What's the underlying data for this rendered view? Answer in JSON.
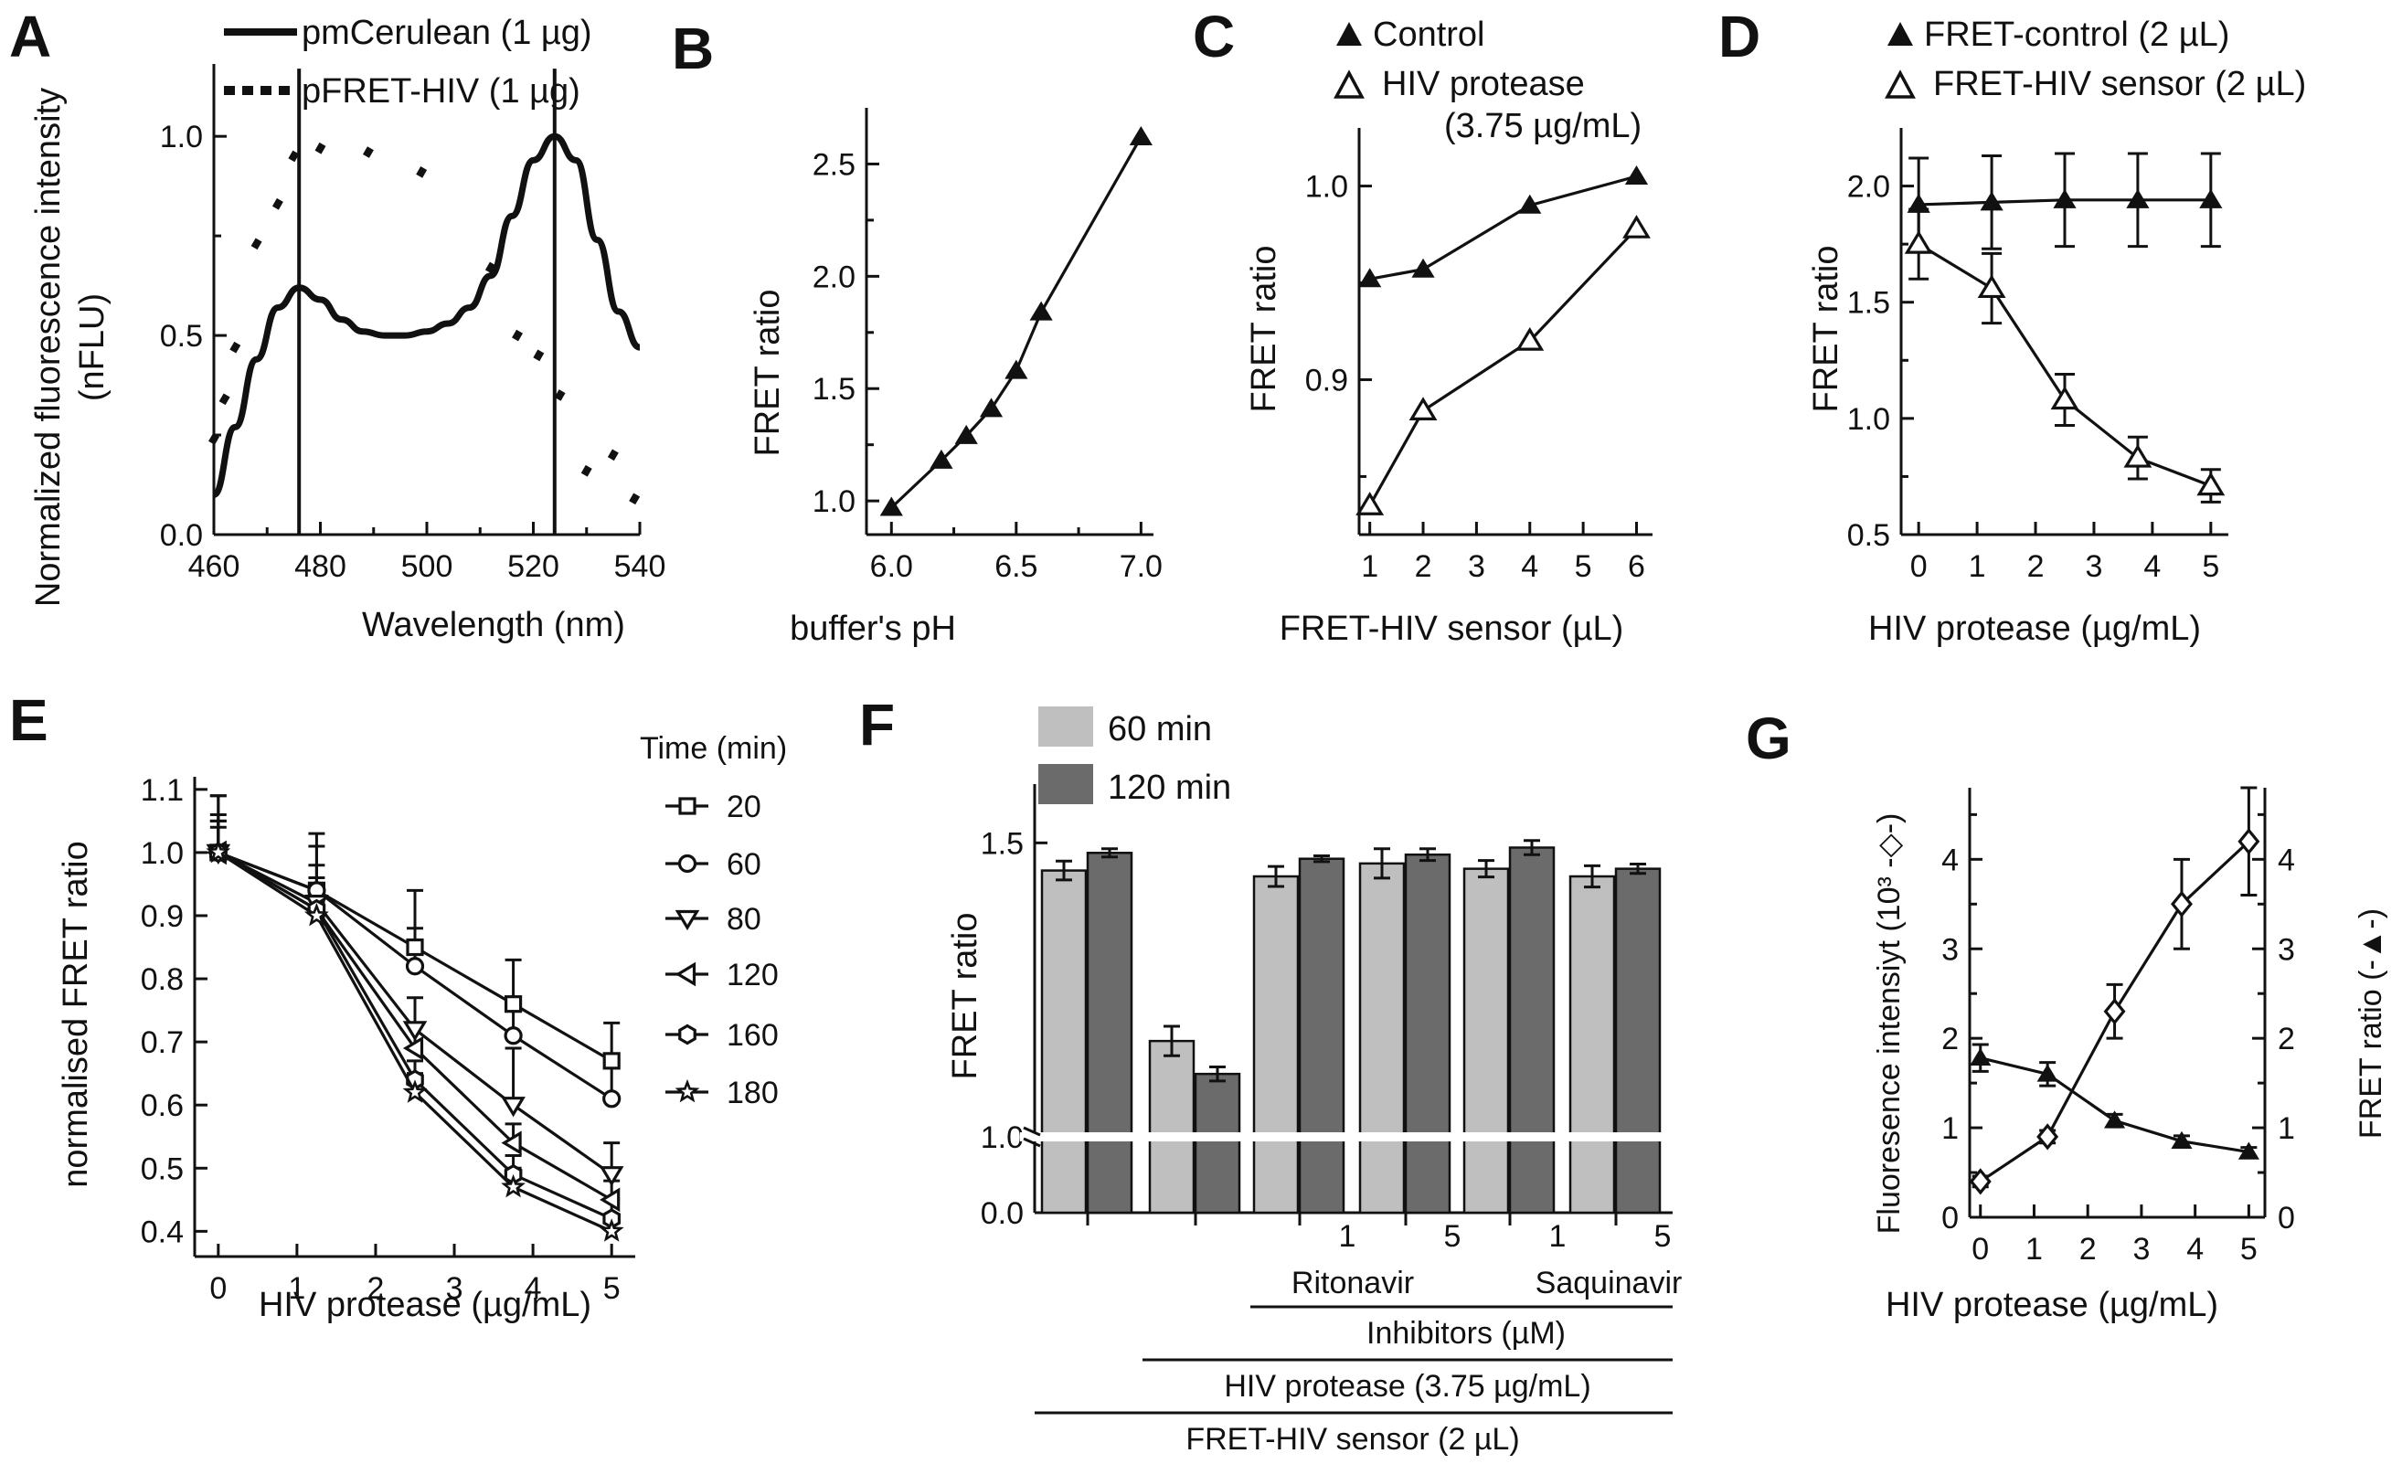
{
  "panels": {
    "A": {
      "label": "A",
      "xlabel": "Wavelength (nm)",
      "ylabel_lines": [
        "Normalized fluorescence intensity",
        "(nFLU)"
      ],
      "xticks": [
        "460",
        "480",
        "500",
        "520",
        "540"
      ],
      "yticks": [
        "0.0",
        "0.5",
        "1.0"
      ]
    },
    "B": {
      "label": "B",
      "xlabel": "buffer's pH",
      "ylabel": "FRET ratio",
      "xticks": [
        "6.0",
        "6.5",
        "7.0"
      ],
      "yticks": [
        "1.0",
        "1.5",
        "2.0",
        "2.5"
      ]
    },
    "C": {
      "label": "C",
      "xlabel": "FRET-HIV sensor (µL)",
      "ylabel": "FRET ratio",
      "xticks": [
        "1",
        "2",
        "3",
        "4",
        "5",
        "6"
      ],
      "yticks": [
        "0.9",
        "1.0"
      ]
    },
    "D": {
      "label": "D",
      "xlabel": "HIV protease (µg/mL)",
      "ylabel": "FRET ratio",
      "xticks": [
        "0",
        "1",
        "2",
        "3",
        "4",
        "5"
      ],
      "yticks": [
        "0.5",
        "1.0",
        "1.5",
        "2.0"
      ]
    },
    "E": {
      "label": "E",
      "xlabel": "HIV protease (µg/mL)",
      "ylabel": "normalised FRET ratio",
      "xticks": [
        "0",
        "1",
        "2",
        "3",
        "4",
        "5"
      ],
      "yticks": [
        "0.4",
        "0.5",
        "0.6",
        "0.7",
        "0.8",
        "0.9",
        "1.0",
        "1.1"
      ],
      "legend_title": "Time (min)"
    },
    "F": {
      "label": "F",
      "ylabel": "FRET ratio",
      "yticks": [
        "0.0",
        "1.0",
        "1.5"
      ],
      "dose_labels": [
        "1",
        "5",
        "1",
        "5"
      ],
      "drug_labels": [
        "Ritonavir",
        "Saquinavir"
      ],
      "bracket_labels": [
        "Inhibitors (µM)",
        "HIV protease (3.75 µg/mL)",
        "FRET-HIV sensor (2 µL)"
      ]
    },
    "G": {
      "label": "G",
      "xlabel": "HIV protease (µg/mL)",
      "ylabel_left": "Fluoresence intensiyt (10³ -◇-)",
      "ylabel_right": "FRET ratio  (-▲-)",
      "xticks": [
        "0",
        "1",
        "2",
        "3",
        "4",
        "5"
      ],
      "yticks": [
        "0",
        "1",
        "2",
        "3",
        "4"
      ],
      "yticks_right": [
        "0",
        "1",
        "2",
        "3",
        "4"
      ]
    }
  },
  "chart_data": [
    {
      "panel": "A",
      "type": "line",
      "xlabel": "Wavelength (nm)",
      "ylabel": "Normalized fluorescence intensity (nFLU)",
      "xlim": [
        460,
        540
      ],
      "ylim": [
        0,
        1.2
      ],
      "vlines": [
        476,
        524
      ],
      "series": [
        {
          "name": "pmCerulean (1 µg)",
          "style": "solid",
          "x": [
            460,
            464,
            468,
            472,
            476,
            480,
            484,
            488,
            492,
            496,
            500,
            504,
            508,
            512,
            516,
            520,
            524,
            528,
            532,
            536,
            540
          ],
          "y": [
            0.1,
            0.27,
            0.44,
            0.57,
            0.62,
            0.59,
            0.54,
            0.51,
            0.5,
            0.5,
            0.51,
            0.53,
            0.57,
            0.65,
            0.8,
            0.94,
            1.0,
            0.94,
            0.74,
            0.56,
            0.47
          ]
        },
        {
          "name": "pFRET-HIV (1 µg)",
          "style": "dotted",
          "x": [
            460,
            462,
            464,
            468,
            472,
            475,
            480,
            489,
            499,
            512,
            517,
            521,
            525,
            530,
            535,
            539
          ],
          "y": [
            0.24,
            0.34,
            0.47,
            0.73,
            0.83,
            0.95,
            0.97,
            0.96,
            0.91,
            0.67,
            0.5,
            0.45,
            0.35,
            0.16,
            0.2,
            0.09
          ]
        }
      ]
    },
    {
      "panel": "B",
      "type": "line",
      "xlabel": "buffer's pH",
      "ylabel": "FRET ratio",
      "xlim": [
        5.9,
        7.05
      ],
      "ylim": [
        0.85,
        2.75
      ],
      "series": [
        {
          "name": "FRET ratio",
          "marker": "triangle-filled",
          "x": [
            6.0,
            6.2,
            6.3,
            6.4,
            6.5,
            6.6,
            7.0
          ],
          "y": [
            0.97,
            1.18,
            1.29,
            1.41,
            1.58,
            1.84,
            2.62
          ]
        }
      ]
    },
    {
      "panel": "C",
      "type": "line",
      "xlabel": "FRET-HIV sensor (µL)",
      "ylabel": "FRET ratio",
      "xlim": [
        0.8,
        6.3
      ],
      "ylim": [
        0.82,
        1.03
      ],
      "series": [
        {
          "name": "Control",
          "marker": "triangle-filled",
          "x": [
            1,
            2,
            4,
            6
          ],
          "y": [
            0.952,
            0.957,
            0.99,
            1.005
          ]
        },
        {
          "name": "HIV protease",
          "name_line2": "(3.75 µg/mL)",
          "marker": "triangle-open",
          "x": [
            1,
            2,
            4,
            6
          ],
          "y": [
            0.835,
            0.884,
            0.92,
            0.978
          ]
        }
      ]
    },
    {
      "panel": "D",
      "type": "line",
      "xlabel": "HIV protease (µg/mL)",
      "ylabel": "FRET ratio",
      "xlim": [
        -0.3,
        5.3
      ],
      "ylim": [
        0.5,
        2.25
      ],
      "series": [
        {
          "name": "FRET-control (2 µL)",
          "marker": "triangle-filled",
          "x": [
            0,
            1.25,
            2.5,
            3.75,
            5
          ],
          "y": [
            1.92,
            1.93,
            1.94,
            1.94,
            1.94
          ],
          "err": [
            0.2,
            0.2,
            0.2,
            0.2,
            0.2
          ]
        },
        {
          "name": "FRET-HIV sensor (2 µL)",
          "marker": "triangle-open",
          "x": [
            0,
            1.25,
            2.5,
            3.75,
            5
          ],
          "y": [
            1.75,
            1.56,
            1.08,
            0.83,
            0.71
          ],
          "err": [
            0.15,
            0.15,
            0.11,
            0.09,
            0.07
          ]
        }
      ]
    },
    {
      "panel": "E",
      "type": "line",
      "xlabel": "HIV protease (µg/mL)",
      "ylabel": "normalised FRET ratio",
      "xlim": [
        -0.3,
        5.3
      ],
      "ylim": [
        0.36,
        1.12
      ],
      "series": [
        {
          "name": "20",
          "marker": "square",
          "x": [
            0,
            1.25,
            2.5,
            3.75,
            5
          ],
          "y": [
            1.0,
            0.94,
            0.85,
            0.76,
            0.67
          ],
          "err": [
            0.09,
            0.09,
            0.09,
            0.07,
            0.06
          ]
        },
        {
          "name": "60",
          "marker": "circle",
          "x": [
            0,
            1.25,
            2.5,
            3.75,
            5
          ],
          "y": [
            1.0,
            0.94,
            0.82,
            0.71,
            0.61
          ],
          "err": [
            0.09,
            0.07,
            0.06,
            0.06,
            0.06
          ]
        },
        {
          "name": "80",
          "marker": "triangle-down",
          "x": [
            0,
            1.25,
            2.5,
            3.75,
            5
          ],
          "y": [
            1.0,
            0.92,
            0.72,
            0.6,
            0.49
          ],
          "err": [
            0.06,
            0.06,
            0.05,
            0.09,
            0.05
          ]
        },
        {
          "name": "120",
          "marker": "triangle-left",
          "x": [
            0,
            1.25,
            2.5,
            3.75,
            5
          ],
          "y": [
            1.0,
            0.91,
            0.69,
            0.54,
            0.45
          ],
          "err": [
            0.05,
            0.05,
            0.04,
            0.03,
            0.03
          ]
        },
        {
          "name": "160",
          "marker": "hexagon",
          "x": [
            0,
            1.25,
            2.5,
            3.75,
            5
          ],
          "y": [
            1.0,
            0.91,
            0.64,
            0.49,
            0.42
          ],
          "err": [
            0.05,
            0.04,
            0.03,
            0.03,
            0.03
          ]
        },
        {
          "name": "180",
          "marker": "star",
          "x": [
            0,
            1.25,
            2.5,
            3.75,
            5
          ],
          "y": [
            1.0,
            0.9,
            0.62,
            0.47,
            0.4
          ],
          "err": [
            0.04,
            0.04,
            0.03,
            0.03,
            0.02
          ]
        }
      ]
    },
    {
      "panel": "F",
      "type": "bar",
      "ylabel": "FRET ratio",
      "ylim": [
        0,
        1.6
      ],
      "axis_break": 1.0,
      "groups": [
        "FRET-HIV sensor",
        "+ HIV protease",
        "+ Ritonavir 1 µM",
        "+ Ritonavir 5 µM",
        "+ Saquinavir 1 µM",
        "+ Saquinavir 5 µM"
      ],
      "series": [
        {
          "name": "60 min",
          "color": "#bfbfbf",
          "values": [
            1.453,
            1.163,
            1.443,
            1.465,
            1.456,
            1.443
          ],
          "err": [
            0.016,
            0.025,
            0.017,
            0.025,
            0.014,
            0.018
          ]
        },
        {
          "name": "120 min",
          "color": "#6b6b6b",
          "values": [
            1.483,
            1.107,
            1.473,
            1.48,
            1.492,
            1.456
          ],
          "err": [
            0.007,
            0.012,
            0.005,
            0.01,
            0.012,
            0.008
          ]
        }
      ]
    },
    {
      "panel": "G",
      "type": "line",
      "xlabel": "HIV protease (µg/mL)",
      "xlim": [
        -0.2,
        5.3
      ],
      "ylim": [
        0,
        4.8
      ],
      "series": [
        {
          "name": "Fluorescence intensity (10³)",
          "axis": "left",
          "marker": "diamond-open",
          "x": [
            0,
            1.25,
            2.5,
            3.75,
            5
          ],
          "y": [
            0.4,
            0.9,
            2.3,
            3.5,
            4.2
          ],
          "err": [
            0.06,
            0.07,
            0.3,
            0.5,
            0.6
          ]
        },
        {
          "name": "FRET ratio",
          "axis": "right",
          "marker": "triangle-filled",
          "x": [
            0,
            1.25,
            2.5,
            3.75,
            5
          ],
          "y": [
            1.78,
            1.6,
            1.08,
            0.85,
            0.73
          ],
          "err": [
            0.15,
            0.13,
            0.07,
            0.06,
            0.05
          ]
        }
      ]
    }
  ]
}
